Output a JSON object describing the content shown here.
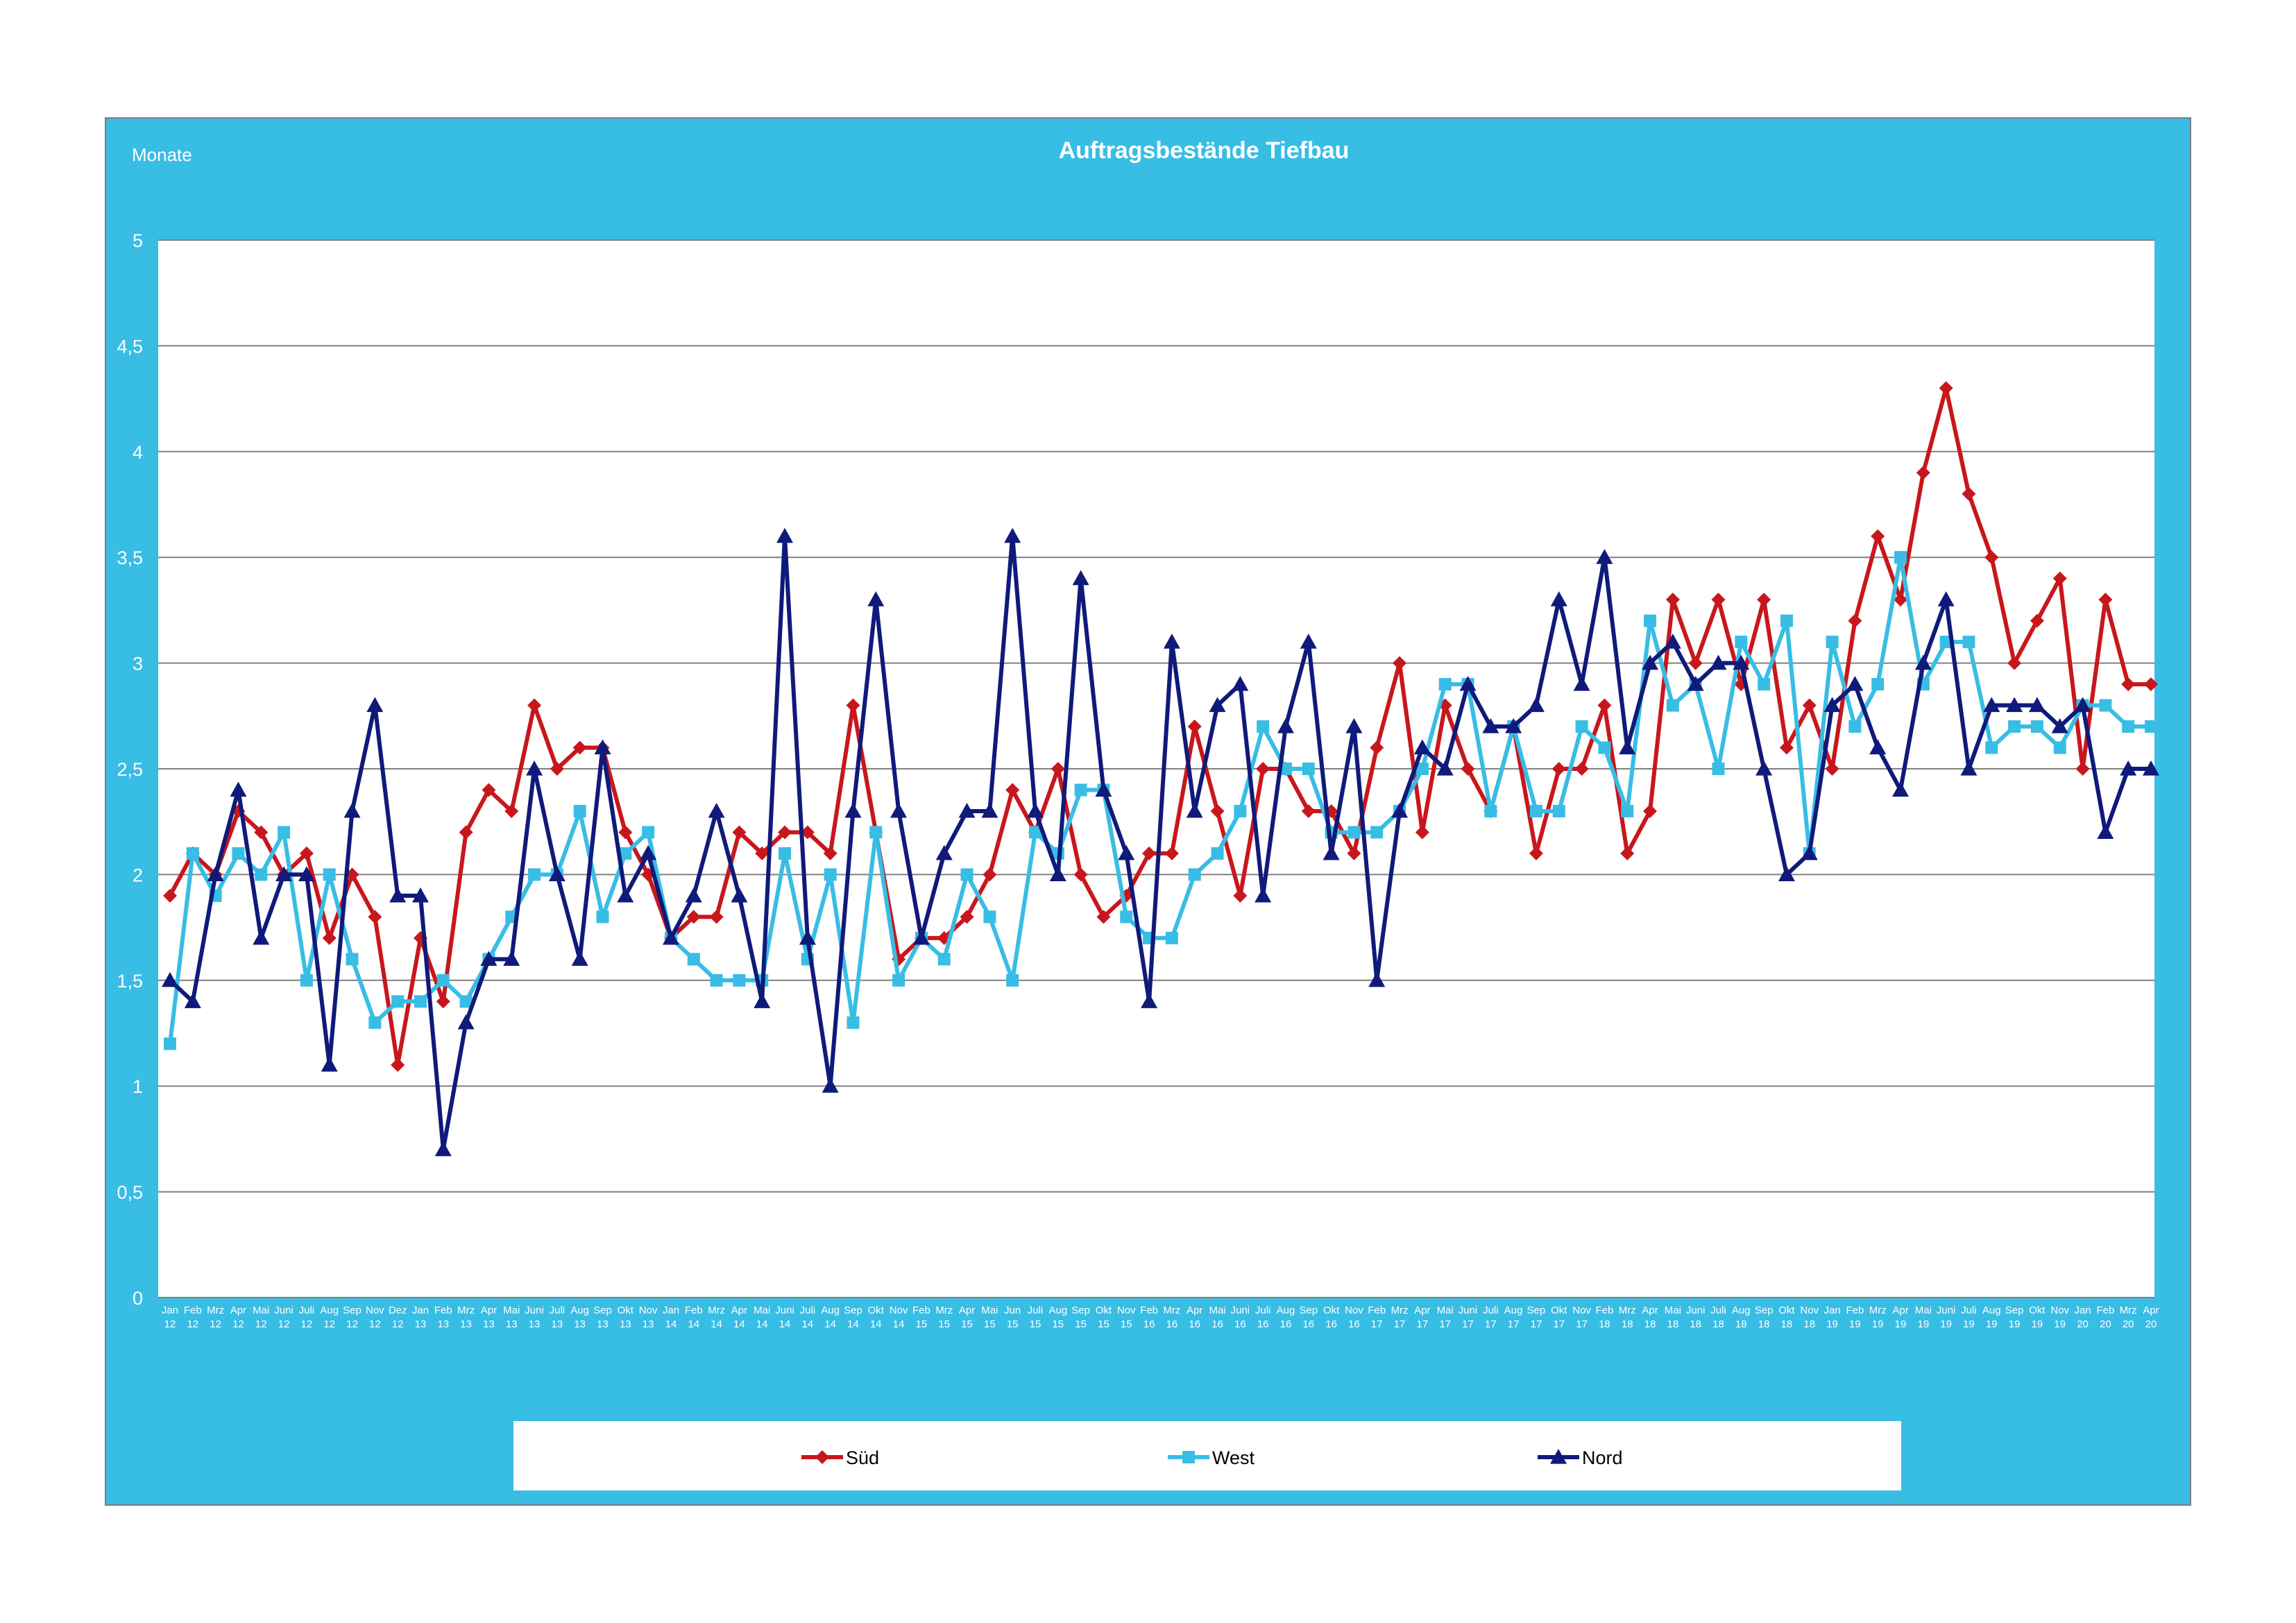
{
  "colors": {
    "frame_bg": "#38BDE5",
    "plot_bg": "#FFFFFF",
    "gridline": "#808080",
    "text": "#FFFFFF",
    "sued": "#C8171C",
    "west": "#38BDE5",
    "nord": "#101A7A"
  },
  "chart_data": {
    "type": "line",
    "title": "Auftragsbestände Tiefbau",
    "ylabel": "Monate",
    "xlabel": "",
    "ylim": [
      0,
      5
    ],
    "yticks": [
      0,
      0.5,
      1,
      1.5,
      2,
      2.5,
      3,
      3.5,
      4,
      4.5,
      5
    ],
    "ytick_labels": [
      "0",
      "0,5",
      "1",
      "1,5",
      "2",
      "2,5",
      "3",
      "3,5",
      "4",
      "4,5",
      "5"
    ],
    "grid": true,
    "legend_position": "bottom",
    "categories": [
      {
        "month": "Jan",
        "year": "12"
      },
      {
        "month": "Feb",
        "year": "12"
      },
      {
        "month": "Mrz",
        "year": "12"
      },
      {
        "month": "Apr",
        "year": "12"
      },
      {
        "month": "Mai",
        "year": "12"
      },
      {
        "month": "Juni",
        "year": "12"
      },
      {
        "month": "Juli",
        "year": "12"
      },
      {
        "month": "Aug",
        "year": "12"
      },
      {
        "month": "Sep",
        "year": "12"
      },
      {
        "month": "Nov",
        "year": "12"
      },
      {
        "month": "Dez",
        "year": "12"
      },
      {
        "month": "Jan",
        "year": "13"
      },
      {
        "month": "Feb",
        "year": "13"
      },
      {
        "month": "Mrz",
        "year": "13"
      },
      {
        "month": "Apr",
        "year": "13"
      },
      {
        "month": "Mai",
        "year": "13"
      },
      {
        "month": "Juni",
        "year": "13"
      },
      {
        "month": "Juli",
        "year": "13"
      },
      {
        "month": "Aug",
        "year": "13"
      },
      {
        "month": "Sep",
        "year": "13"
      },
      {
        "month": "Okt",
        "year": "13"
      },
      {
        "month": "Nov",
        "year": "13"
      },
      {
        "month": "Jan",
        "year": "14"
      },
      {
        "month": "Feb",
        "year": "14"
      },
      {
        "month": "Mrz",
        "year": "14"
      },
      {
        "month": "Apr",
        "year": "14"
      },
      {
        "month": "Mai",
        "year": "14"
      },
      {
        "month": "Juni",
        "year": "14"
      },
      {
        "month": "Juli",
        "year": "14"
      },
      {
        "month": "Aug",
        "year": "14"
      },
      {
        "month": "Sep",
        "year": "14"
      },
      {
        "month": "Okt",
        "year": "14"
      },
      {
        "month": "Nov",
        "year": "14"
      },
      {
        "month": "Feb",
        "year": "15"
      },
      {
        "month": "Mrz",
        "year": "15"
      },
      {
        "month": "Apr",
        "year": "15"
      },
      {
        "month": "Mai",
        "year": "15"
      },
      {
        "month": "Jun",
        "year": "15"
      },
      {
        "month": "Juli",
        "year": "15"
      },
      {
        "month": "Aug",
        "year": "15"
      },
      {
        "month": "Sep",
        "year": "15"
      },
      {
        "month": "Okt",
        "year": "15"
      },
      {
        "month": "Nov",
        "year": "15"
      },
      {
        "month": "Feb",
        "year": "16"
      },
      {
        "month": "Mrz",
        "year": "16"
      },
      {
        "month": "Apr",
        "year": "16"
      },
      {
        "month": "Mai",
        "year": "16"
      },
      {
        "month": "Juni",
        "year": "16"
      },
      {
        "month": "Juli",
        "year": "16"
      },
      {
        "month": "Aug",
        "year": "16"
      },
      {
        "month": "Sep",
        "year": "16"
      },
      {
        "month": "Okt",
        "year": "16"
      },
      {
        "month": "Nov",
        "year": "16"
      },
      {
        "month": "Feb",
        "year": "17"
      },
      {
        "month": "Mrz",
        "year": "17"
      },
      {
        "month": "Apr",
        "year": "17"
      },
      {
        "month": "Mai",
        "year": "17"
      },
      {
        "month": "Juni",
        "year": "17"
      },
      {
        "month": "Juli",
        "year": "17"
      },
      {
        "month": "Aug",
        "year": "17"
      },
      {
        "month": "Sep",
        "year": "17"
      },
      {
        "month": "Okt",
        "year": "17"
      },
      {
        "month": "Nov",
        "year": "17"
      },
      {
        "month": "Feb",
        "year": "18"
      },
      {
        "month": "Mrz",
        "year": "18"
      },
      {
        "month": "Apr",
        "year": "18"
      },
      {
        "month": "Mai",
        "year": "18"
      },
      {
        "month": "Juni",
        "year": "18"
      },
      {
        "month": "Juli",
        "year": "18"
      },
      {
        "month": "Aug",
        "year": "18"
      },
      {
        "month": "Sep",
        "year": "18"
      },
      {
        "month": "Okt",
        "year": "18"
      },
      {
        "month": "Nov",
        "year": "18"
      },
      {
        "month": "Jan",
        "year": "19"
      },
      {
        "month": "Feb",
        "year": "19"
      },
      {
        "month": "Mrz",
        "year": "19"
      },
      {
        "month": "Apr",
        "year": "19"
      },
      {
        "month": "Mai",
        "year": "19"
      },
      {
        "month": "Juni",
        "year": "19"
      },
      {
        "month": "Juli",
        "year": "19"
      },
      {
        "month": "Aug",
        "year": "19"
      },
      {
        "month": "Sep",
        "year": "19"
      },
      {
        "month": "Okt",
        "year": "19"
      },
      {
        "month": "Nov",
        "year": "19"
      },
      {
        "month": "Jan",
        "year": "20"
      },
      {
        "month": "Feb",
        "year": "20"
      },
      {
        "month": "Mrz",
        "year": "20"
      },
      {
        "month": "Apr",
        "year": "20"
      }
    ],
    "series": [
      {
        "name": "Süd",
        "color": "#C8171C",
        "marker": "diamond",
        "values": [
          1.9,
          2.1,
          2.0,
          2.3,
          2.2,
          2.0,
          2.1,
          1.7,
          2.0,
          1.8,
          1.1,
          1.7,
          1.4,
          2.2,
          2.4,
          2.3,
          2.8,
          2.5,
          2.6,
          2.6,
          2.2,
          2.0,
          1.7,
          1.8,
          1.8,
          2.2,
          2.1,
          2.2,
          2.2,
          2.1,
          2.8,
          2.2,
          1.6,
          1.7,
          1.7,
          1.8,
          2.0,
          2.4,
          2.2,
          2.5,
          2.0,
          1.8,
          1.9,
          2.1,
          2.1,
          2.7,
          2.3,
          1.9,
          2.5,
          2.5,
          2.3,
          2.3,
          2.1,
          2.6,
          3.0,
          2.2,
          2.8,
          2.5,
          2.3,
          2.7,
          2.1,
          2.5,
          2.5,
          2.8,
          2.1,
          2.3,
          3.3,
          3.0,
          3.3,
          2.9,
          3.3,
          2.6,
          2.8,
          2.5,
          3.2,
          3.6,
          3.3,
          3.9,
          4.3,
          3.8,
          3.5,
          3.0,
          3.2,
          3.4,
          2.5,
          3.3,
          2.9,
          2.9
        ]
      },
      {
        "name": "West",
        "color": "#38BDE5",
        "marker": "square",
        "values": [
          1.2,
          2.1,
          1.9,
          2.1,
          2.0,
          2.2,
          1.5,
          2.0,
          1.6,
          1.3,
          1.4,
          1.4,
          1.5,
          1.4,
          1.6,
          1.8,
          2.0,
          2.0,
          2.3,
          1.8,
          2.1,
          2.2,
          1.7,
          1.6,
          1.5,
          1.5,
          1.5,
          2.1,
          1.6,
          2.0,
          1.3,
          2.2,
          1.5,
          1.7,
          1.6,
          2.0,
          1.8,
          1.5,
          2.2,
          2.1,
          2.4,
          2.4,
          1.8,
          1.7,
          1.7,
          2.0,
          2.1,
          2.3,
          2.7,
          2.5,
          2.5,
          2.2,
          2.2,
          2.2,
          2.3,
          2.5,
          2.9,
          2.9,
          2.3,
          2.7,
          2.3,
          2.3,
          2.7,
          2.6,
          2.3,
          3.2,
          2.8,
          2.9,
          2.5,
          3.1,
          2.9,
          3.2,
          2.1,
          3.1,
          2.7,
          2.9,
          3.5,
          2.9,
          3.1,
          3.1,
          2.6,
          2.7,
          2.7,
          2.6,
          2.8,
          2.8,
          2.7,
          2.7
        ]
      },
      {
        "name": "Nord",
        "color": "#101A7A",
        "marker": "triangle",
        "values": [
          1.5,
          1.4,
          2.0,
          2.4,
          1.7,
          2.0,
          2.0,
          1.1,
          2.3,
          2.8,
          1.9,
          1.9,
          0.7,
          1.3,
          1.6,
          1.6,
          2.5,
          2.0,
          1.6,
          2.6,
          1.9,
          2.1,
          1.7,
          1.9,
          2.3,
          1.9,
          1.4,
          3.6,
          1.7,
          1.0,
          2.3,
          3.3,
          2.3,
          1.7,
          2.1,
          2.3,
          2.3,
          3.6,
          2.3,
          2.0,
          3.4,
          2.4,
          2.1,
          1.4,
          3.1,
          2.3,
          2.8,
          2.9,
          1.9,
          2.7,
          3.1,
          2.1,
          2.7,
          1.5,
          2.3,
          2.6,
          2.5,
          2.9,
          2.7,
          2.7,
          2.8,
          3.3,
          2.9,
          3.5,
          2.6,
          3.0,
          3.1,
          2.9,
          3.0,
          3.0,
          2.5,
          2.0,
          2.1,
          2.8,
          2.9,
          2.6,
          2.4,
          3.0,
          3.3,
          2.5,
          2.8,
          2.8,
          2.8,
          2.7,
          2.8,
          2.2,
          2.5,
          2.5
        ]
      }
    ]
  }
}
